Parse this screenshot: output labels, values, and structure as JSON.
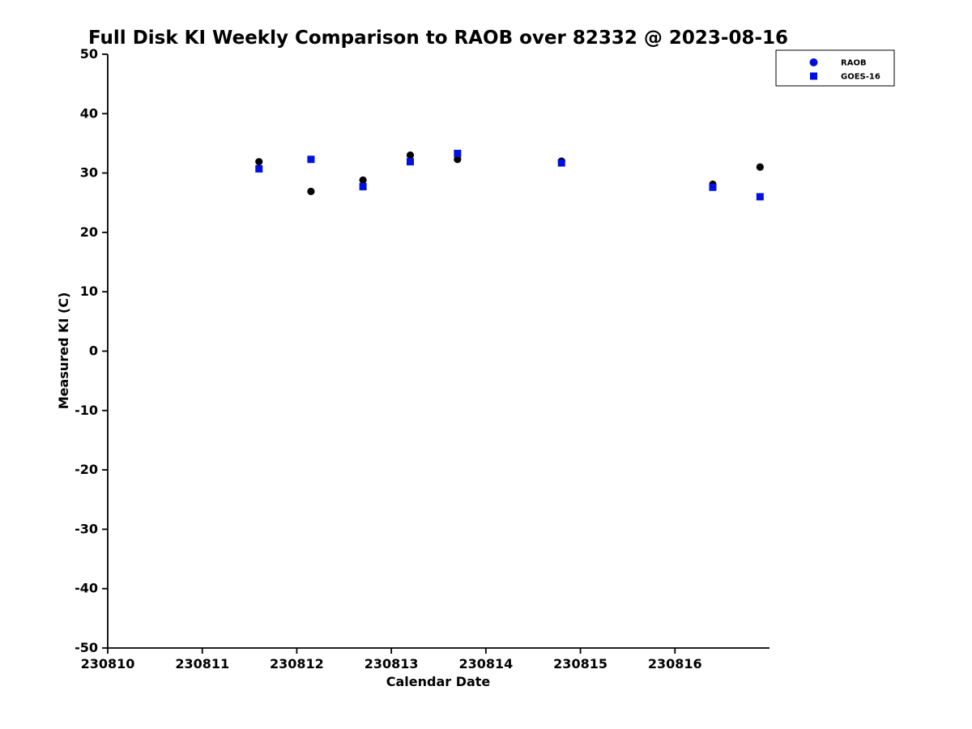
{
  "colors": {
    "background": "#ffffff",
    "axis": "#000000",
    "text": "#000000",
    "goes_blue": "#0000e0",
    "raob_point": "#000000"
  },
  "chart_data": {
    "type": "scatter",
    "title": "Full Disk KI Weekly Comparison to RAOB over 82332 @ 2023-08-16",
    "xlabel": "Calendar Date",
    "ylabel": "Measured KI (C)",
    "xlim": [
      230810,
      230817
    ],
    "ylim": [
      -50,
      50
    ],
    "xticks": [
      "230810",
      "230811",
      "230812",
      "230813",
      "230814",
      "230815",
      "230816"
    ],
    "yticks": [
      -50,
      -40,
      -30,
      -20,
      -10,
      0,
      10,
      20,
      30,
      40,
      50
    ],
    "grid": false,
    "legend": {
      "position": "top-right",
      "border": "#000000",
      "background": "#ffffff"
    },
    "series": [
      {
        "name": "RAOB",
        "marker": "circle",
        "point_color": "#000000",
        "legend_color": "#0010d6",
        "x": [
          230811.6,
          230812.15,
          230812.7,
          230813.2,
          230813.7,
          230814.8,
          230816.4,
          230816.9
        ],
        "y": [
          31.9,
          26.9,
          28.8,
          33.0,
          32.3,
          32.0,
          28.1,
          31.0
        ]
      },
      {
        "name": "GOES-16",
        "marker": "square",
        "point_color": "#0010e0",
        "legend_color": "#0010e0",
        "x": [
          230811.6,
          230812.15,
          230812.7,
          230813.2,
          230813.7,
          230814.8,
          230816.4,
          230816.9
        ],
        "y": [
          30.7,
          32.3,
          27.7,
          31.9,
          33.3,
          31.7,
          27.6,
          26.0
        ]
      }
    ]
  }
}
